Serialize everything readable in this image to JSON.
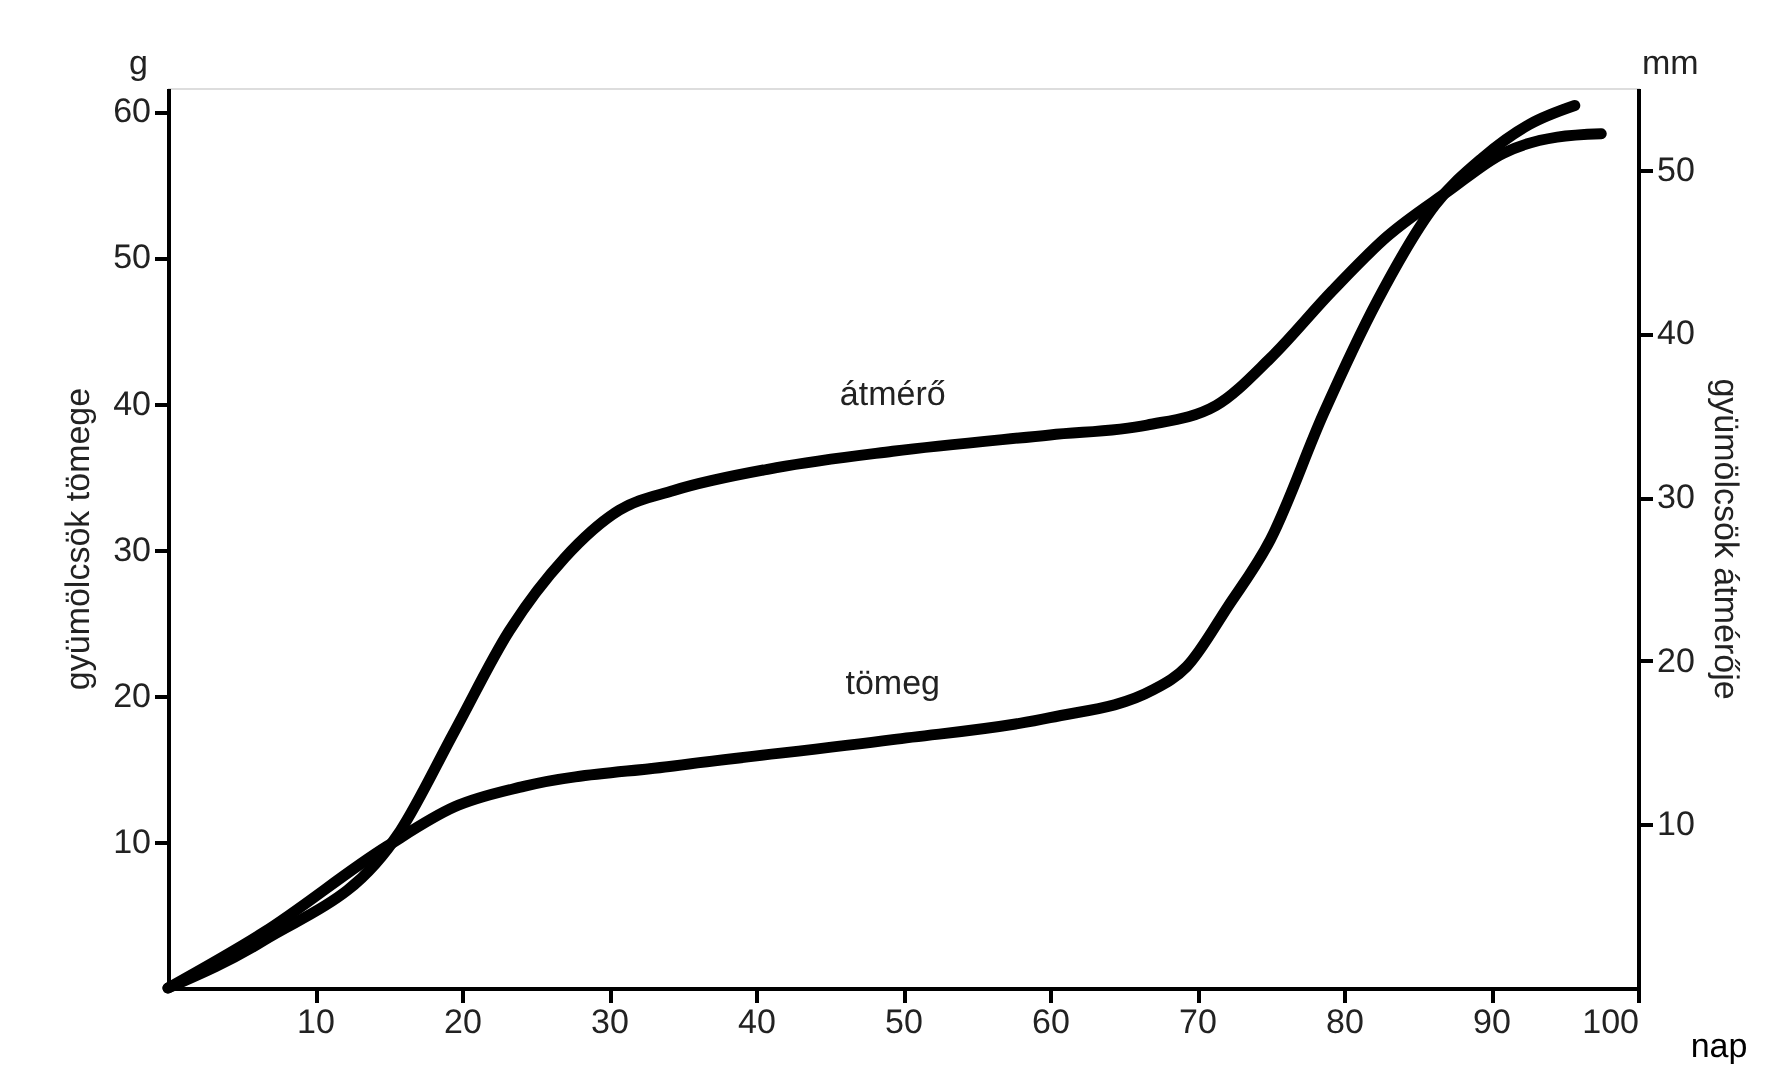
{
  "chart_data": {
    "type": "line",
    "ylabel": "gyümölcsök tömege",
    "y2label": "gyümölcsök átmérője",
    "xlabel": "nap",
    "xlim": [
      0,
      100
    ],
    "xticks": [
      10,
      20,
      30,
      40,
      50,
      60,
      70,
      80,
      90,
      100
    ],
    "ylim": [
      0,
      61.6
    ],
    "yticks": [
      10,
      20,
      30,
      40,
      50,
      60
    ],
    "y2lim": [
      0,
      55
    ],
    "y2ticks": [
      10,
      20,
      30,
      40,
      50
    ],
    "grid": false,
    "legend": false,
    "marker": "none",
    "line_style": "solid",
    "series": [
      {
        "name": "tömeg",
        "color": "#000000",
        "x": [
          0,
          6.5,
          14.9,
          19.5,
          24.2,
          34.4,
          49.3,
          60,
          67,
          69.3,
          72.1,
          75,
          78.6,
          82.3,
          86.2,
          89.4,
          92.6,
          95.7
        ],
        "values": [
          0,
          3.8,
          9.7,
          12.4,
          13.8,
          15.2,
          17.0,
          18.5,
          20.4,
          22,
          26.1,
          30.7,
          39.3,
          47.1,
          53.6,
          56.8,
          59.1,
          60.4
        ]
      },
      {
        "name": "átmérő",
        "color": "#000000",
        "axis": "y2",
        "x": [
          0,
          6.5,
          15.8,
          19.5,
          23.2,
          27,
          30.7,
          34.4,
          41.4,
          49.3,
          60,
          66.6,
          71.3,
          75,
          79.2,
          82.9,
          87.1,
          90.8,
          94.5,
          97.5
        ],
        "values": [
          0,
          2.9,
          9.6,
          15.7,
          21.8,
          26.3,
          29.2,
          30.4,
          31.8,
          32.8,
          33.8,
          34.4,
          35.6,
          38.5,
          42.6,
          45.9,
          48.7,
          51.0,
          52.0,
          52.2
        ]
      }
    ],
    "annotations": [
      "g",
      "mm"
    ]
  }
}
